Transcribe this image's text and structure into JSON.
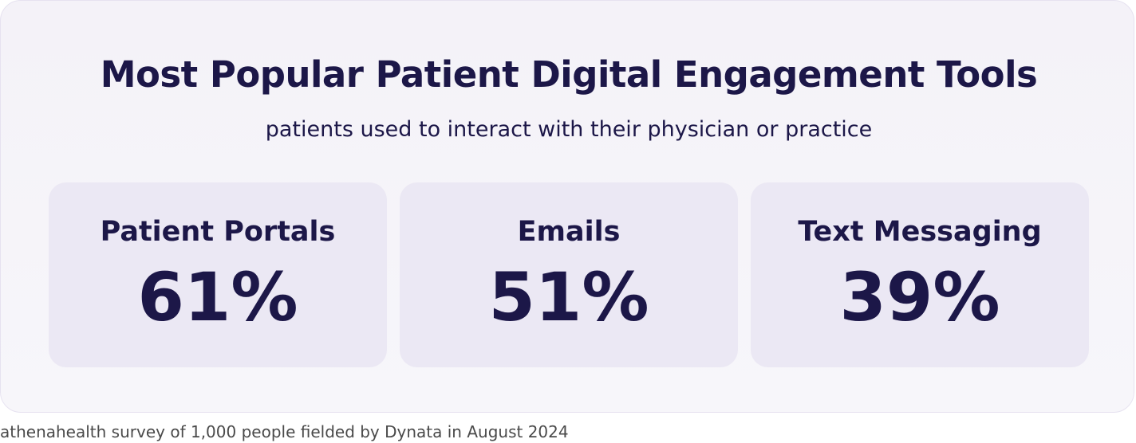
{
  "title": "Most Popular Patient Digital Engagement Tools",
  "subtitle": "patients used to interact with their physician or practice",
  "stats": [
    {
      "label": "Patient Portals",
      "value": "61%"
    },
    {
      "label": "Emails",
      "value": "51%"
    },
    {
      "label": "Text Messaging",
      "value": "39%"
    }
  ],
  "footnote": "athenahealth survey of 1,000 people fielded by Dynata in August 2024",
  "colors": {
    "text": "#1c1748",
    "card_background": "#f6f4f9",
    "tile_background": "#ebe8f4"
  }
}
